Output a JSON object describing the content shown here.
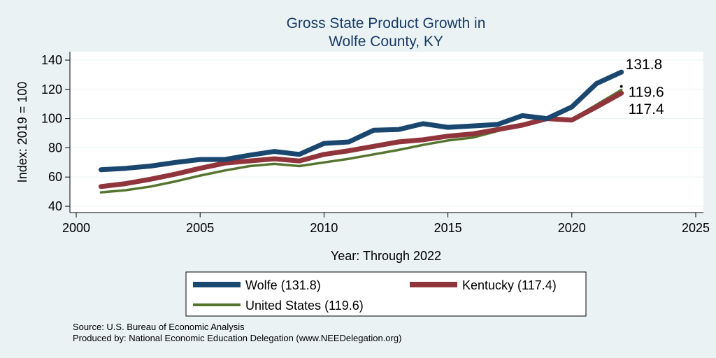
{
  "chart_data": {
    "type": "line",
    "title": [
      "Gross State Product Growth in",
      "Wolfe County, KY"
    ],
    "xlabel": "Year: Through 2022",
    "ylabel": "Index: 2019 = 100",
    "xlim": [
      2000,
      2025
    ],
    "ylim": [
      40,
      140
    ],
    "xticks": [
      2000,
      2005,
      2010,
      2015,
      2020,
      2025
    ],
    "yticks": [
      40,
      60,
      80,
      100,
      120,
      140
    ],
    "grid": true,
    "legend_position": "bottom",
    "x": [
      2001,
      2002,
      2003,
      2004,
      2005,
      2006,
      2007,
      2008,
      2009,
      2010,
      2011,
      2012,
      2013,
      2014,
      2015,
      2016,
      2017,
      2018,
      2019,
      2020,
      2021,
      2022
    ],
    "series": [
      {
        "name": "Wolfe",
        "legend_label": "Wolfe  (131.8)",
        "end_label": "131.8",
        "color": "#1a476f",
        "values": [
          65,
          66,
          67.5,
          70,
          72,
          72,
          75,
          77.5,
          75.5,
          83,
          84,
          92,
          92.5,
          96.5,
          94,
          95,
          96,
          102,
          100,
          108,
          124,
          131.8
        ]
      },
      {
        "name": "Kentucky",
        "legend_label": "Kentucky (117.4)",
        "end_label": "117.4",
        "color": "#90353b",
        "values": [
          53.5,
          55.5,
          58.5,
          62,
          66,
          69.5,
          71,
          72.5,
          71,
          75.5,
          78,
          81,
          84,
          85.5,
          88,
          89.5,
          92.5,
          95.5,
          100,
          99,
          108,
          117.4
        ]
      },
      {
        "name": "United States",
        "legend_label": "United States (119.6)",
        "end_label": "119.6",
        "color": "#55752f",
        "values": [
          49.5,
          51,
          53.5,
          57,
          61,
          64.5,
          67.5,
          69,
          67.5,
          70,
          72.5,
          75.5,
          78.5,
          82,
          85,
          87,
          91.5,
          96,
          100,
          99.5,
          109.5,
          119.6
        ]
      }
    ],
    "notes": [
      "Source: U.S. Bureau of Economic Analysis",
      "Produced by: National Economic Education Delegation (www.NEEDelegation.org)"
    ]
  }
}
